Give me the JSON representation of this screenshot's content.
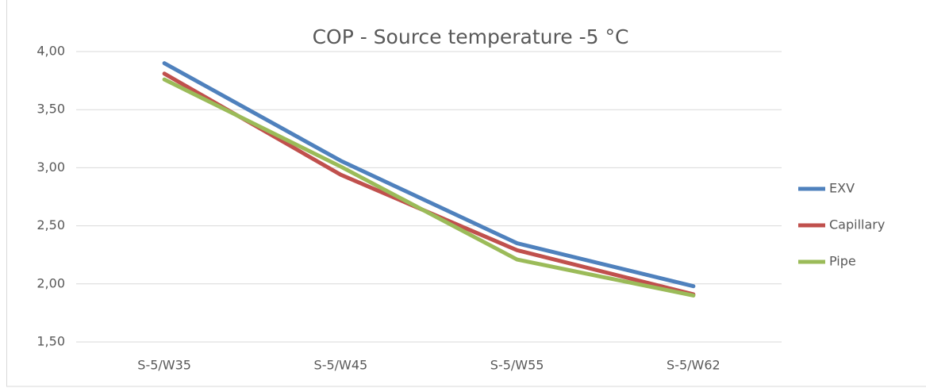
{
  "chart_data": {
    "type": "line",
    "title": "COP - Source temperature -5 °C",
    "categories": [
      "S-5/W35",
      "S-5/W45",
      "S-5/W55",
      "S-5/W62"
    ],
    "series": [
      {
        "name": "EXV",
        "color": "#4f81bd",
        "values": [
          3.9,
          3.06,
          2.35,
          1.98
        ]
      },
      {
        "name": "Capillary",
        "color": "#c0504d",
        "values": [
          3.81,
          2.94,
          2.29,
          1.91
        ]
      },
      {
        "name": "Pipe",
        "color": "#9bbb59",
        "values": [
          3.76,
          3.01,
          2.21,
          1.9
        ]
      }
    ],
    "ylim": [
      1.5,
      4.0
    ],
    "yticks": [
      {
        "value": 1.5,
        "label": "1,50"
      },
      {
        "value": 2.0,
        "label": "2,00"
      },
      {
        "value": 2.5,
        "label": "2,50"
      },
      {
        "value": 3.0,
        "label": "3,00"
      },
      {
        "value": 3.5,
        "label": "3,50"
      },
      {
        "value": 4.0,
        "label": "4,00"
      }
    ],
    "grid": true,
    "legend": "right"
  }
}
